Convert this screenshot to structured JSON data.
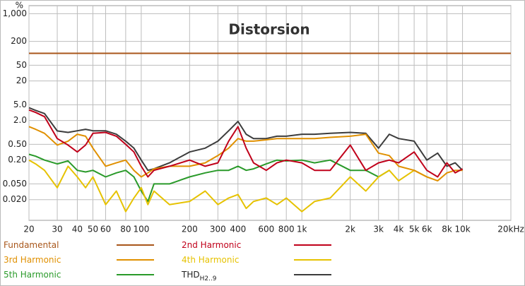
{
  "chart_data": {
    "type": "line",
    "title": "Distorsion",
    "y_axis_label": "%",
    "xscale": "log",
    "yscale": "log",
    "grid": true,
    "xlim": [
      20,
      20000
    ],
    "ylim": [
      0.006,
      1600
    ],
    "xticks": [
      20,
      30,
      40,
      50,
      60,
      80,
      100,
      200,
      300,
      400,
      600,
      800,
      {
        "value": 1000,
        "label": "1k"
      },
      {
        "value": 2000,
        "label": "2k"
      },
      {
        "value": 3000,
        "label": "3k"
      },
      {
        "value": 4000,
        "label": "4k"
      },
      {
        "value": 5000,
        "label": "5k"
      },
      {
        "value": 6000,
        "label": "6k"
      },
      {
        "value": 8000,
        "label": "8k"
      },
      {
        "value": 10000,
        "label": "10k"
      },
      {
        "value": 20000,
        "label": "20kHz"
      }
    ],
    "yticks": [
      {
        "value": 1000,
        "label": "1,000"
      },
      200,
      50,
      20,
      {
        "value": 5,
        "label": "5.0"
      },
      {
        "value": 2,
        "label": "2.0"
      },
      {
        "value": 0.5,
        "label": "0.50"
      },
      {
        "value": 0.2,
        "label": "0.20"
      },
      {
        "value": 0.05,
        "label": "0.050"
      },
      {
        "value": 0.02,
        "label": "0.020"
      }
    ],
    "x": [
      20,
      22,
      25,
      30,
      35,
      40,
      45,
      50,
      60,
      70,
      80,
      90,
      100,
      110,
      120,
      150,
      200,
      250,
      300,
      350,
      400,
      450,
      500,
      600,
      700,
      800,
      1000,
      1200,
      1500,
      2000,
      2500,
      3000,
      3500,
      4000,
      5000,
      6000,
      7000,
      8000,
      9000,
      10000,
      20000
    ],
    "series": [
      {
        "name": "Fundamental",
        "color": "#a8561a",
        "values": [
          100,
          100,
          100,
          100,
          100,
          100,
          100,
          100,
          100,
          100,
          100,
          100,
          100,
          100,
          100,
          100,
          100,
          100,
          100,
          100,
          100,
          100,
          100,
          100,
          100,
          100,
          100,
          100,
          100,
          100,
          100,
          100,
          100,
          100,
          100,
          100,
          100,
          100,
          100,
          100,
          100
        ]
      },
      {
        "name": "2nd Harmonic",
        "color": "#c0001a",
        "values": [
          3.7,
          3.2,
          2.5,
          0.7,
          0.48,
          0.32,
          0.48,
          0.95,
          1.0,
          0.8,
          0.5,
          0.32,
          0.14,
          0.075,
          0.11,
          0.14,
          0.2,
          0.14,
          0.17,
          0.6,
          1.4,
          0.4,
          0.17,
          0.11,
          0.17,
          0.2,
          0.17,
          0.11,
          0.11,
          0.48,
          0.11,
          0.17,
          0.2,
          0.17,
          0.32,
          0.11,
          0.075,
          0.17,
          0.095,
          0.12,
          null
        ]
      },
      {
        "name": "3rd Harmonic",
        "color": "#e09000",
        "values": [
          1.4,
          1.2,
          0.95,
          0.48,
          0.6,
          0.9,
          0.8,
          0.4,
          0.14,
          0.17,
          0.2,
          0.11,
          0.075,
          0.095,
          0.12,
          0.14,
          0.14,
          0.17,
          0.26,
          0.4,
          0.7,
          0.6,
          0.6,
          0.65,
          0.7,
          0.7,
          0.7,
          0.7,
          0.75,
          0.8,
          0.9,
          0.3,
          0.26,
          0.14,
          0.11,
          0.075,
          0.06,
          0.095,
          0.11,
          0.11,
          null
        ]
      },
      {
        "name": "4th Harmonic",
        "color": "#e6c200",
        "values": [
          0.2,
          0.16,
          0.11,
          0.04,
          0.14,
          0.075,
          0.04,
          0.075,
          0.015,
          0.033,
          0.01,
          0.022,
          0.04,
          0.015,
          0.033,
          0.015,
          0.018,
          0.033,
          0.015,
          0.022,
          0.027,
          0.012,
          0.018,
          0.022,
          0.015,
          0.022,
          0.01,
          0.018,
          0.022,
          0.075,
          0.033,
          0.075,
          0.11,
          0.06,
          0.11,
          0.075,
          null,
          null,
          null,
          null,
          null
        ]
      },
      {
        "name": "5th Harmonic",
        "color": "#2a9a2a",
        "values": [
          0.28,
          0.25,
          0.2,
          0.16,
          0.19,
          0.11,
          0.1,
          0.11,
          0.075,
          0.095,
          0.11,
          0.075,
          0.033,
          0.018,
          0.05,
          0.05,
          0.075,
          0.095,
          0.11,
          0.11,
          0.14,
          0.11,
          0.12,
          0.16,
          0.2,
          0.19,
          0.2,
          0.17,
          0.2,
          0.11,
          0.11,
          0.075,
          0.11,
          null,
          null,
          null,
          null,
          null,
          null,
          null,
          null
        ]
      },
      {
        "name": "THD",
        "name_subscript": "H2..9",
        "color": "#3c3c3c",
        "values": [
          4.2,
          3.6,
          3.0,
          1.09,
          1.0,
          1.1,
          1.2,
          1.1,
          1.1,
          0.9,
          0.6,
          0.4,
          0.2,
          0.11,
          0.12,
          0.17,
          0.32,
          0.4,
          0.6,
          1.1,
          1.9,
          0.9,
          0.7,
          0.7,
          0.8,
          0.8,
          0.9,
          0.9,
          0.95,
          1.0,
          0.95,
          0.4,
          0.9,
          0.7,
          0.6,
          0.2,
          0.3,
          0.14,
          0.17,
          0.11,
          null
        ]
      }
    ]
  }
}
